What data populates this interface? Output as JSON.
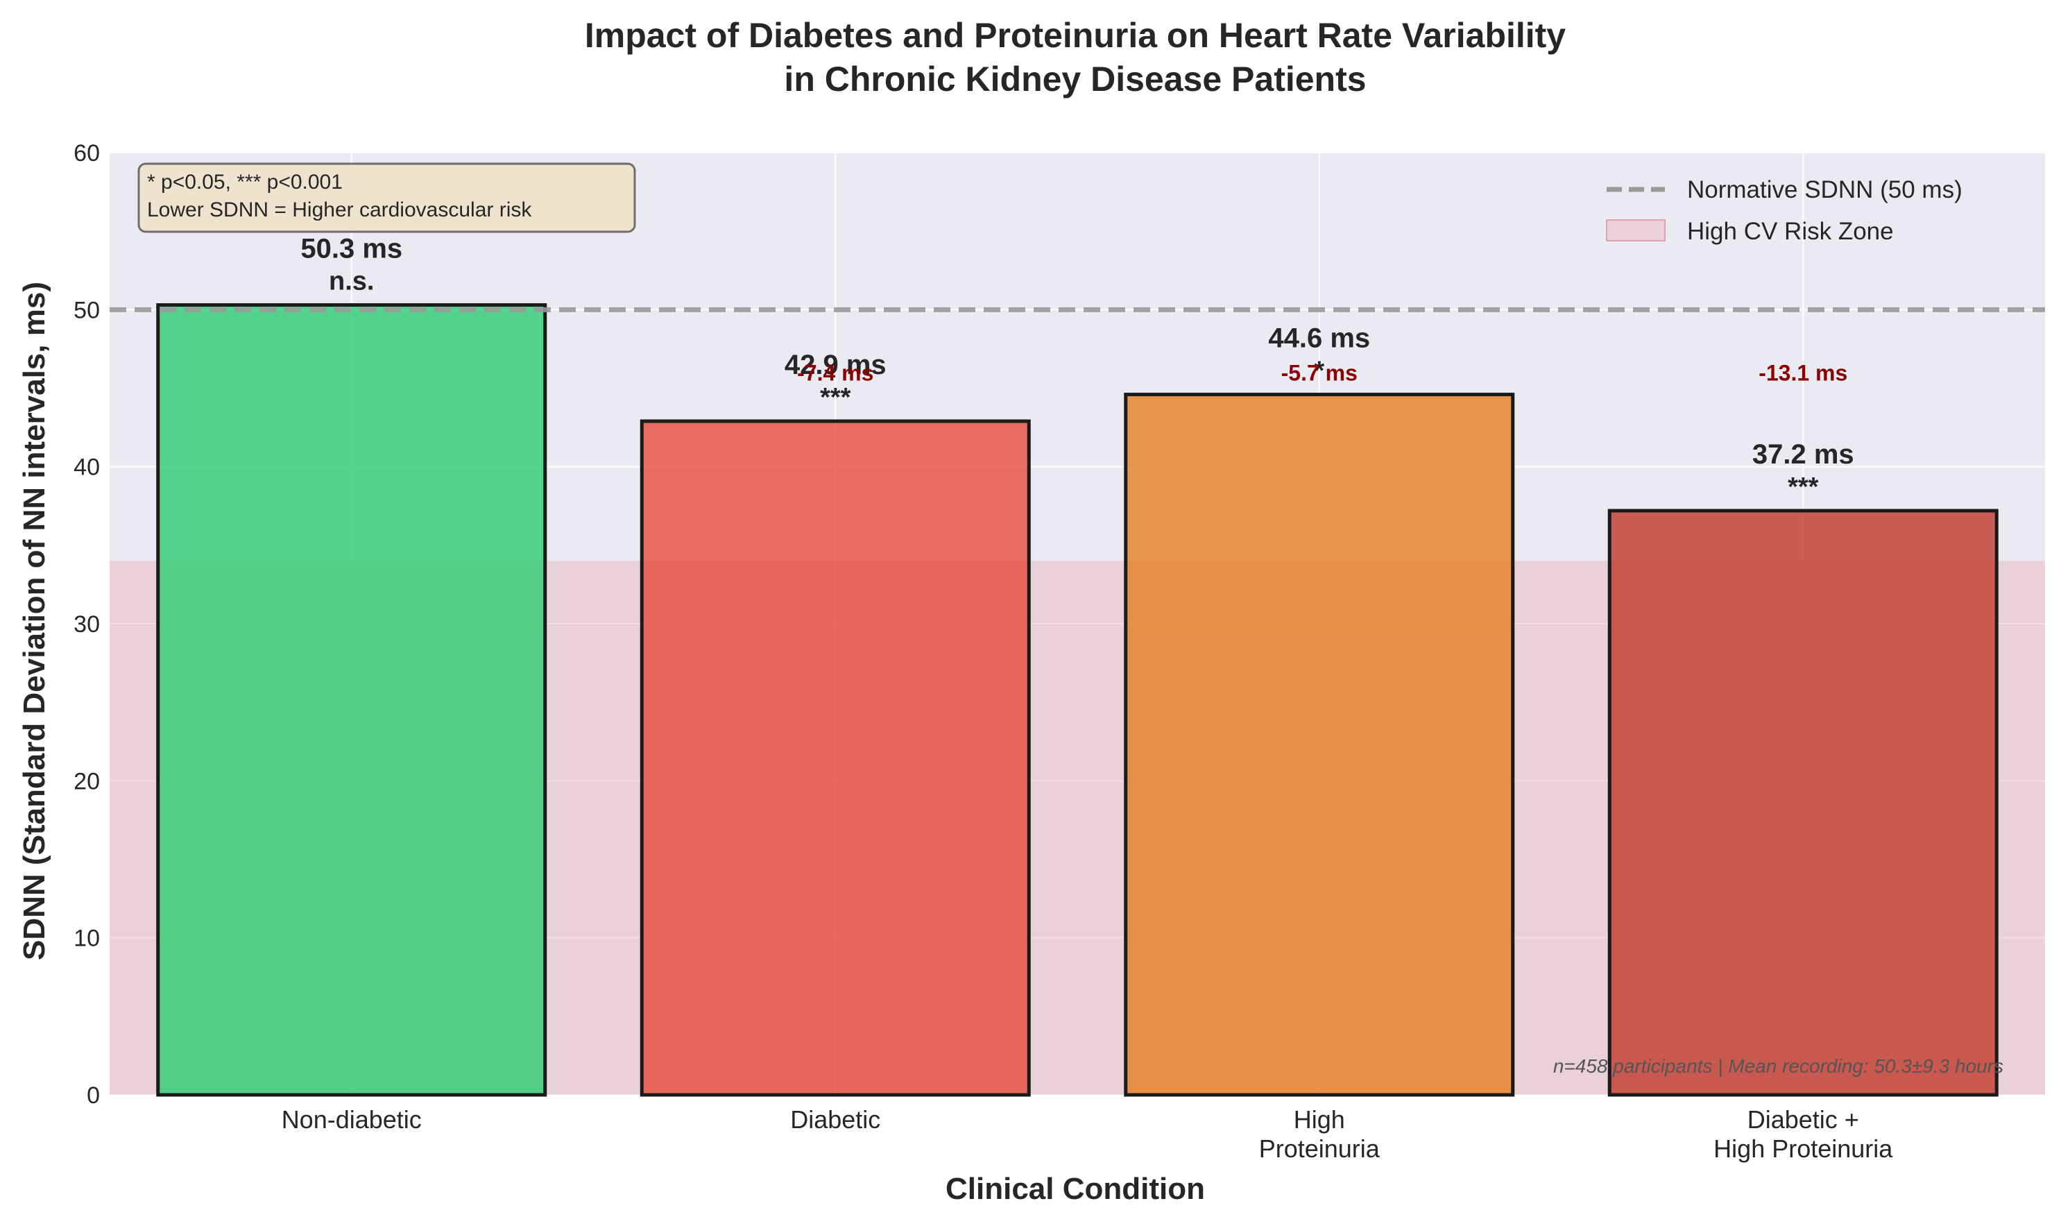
{
  "chart_data": {
    "type": "bar",
    "title_lines": [
      "Impact of Diabetes and Proteinuria on Heart Rate Variability",
      "in Chronic Kidney Disease Patients"
    ],
    "xlabel": "Clinical Condition",
    "ylabel": "SDNN (Standard Deviation of NN intervals, ms)",
    "ylim": [
      0,
      60
    ],
    "yticks": [
      0,
      10,
      20,
      30,
      40,
      50,
      60
    ],
    "grid": true,
    "categories": [
      {
        "lines": [
          "Non-diabetic"
        ]
      },
      {
        "lines": [
          "Diabetic"
        ]
      },
      {
        "lines": [
          "High",
          "Proteinuria"
        ]
      },
      {
        "lines": [
          "Diabetic +",
          "High Proteinuria"
        ]
      }
    ],
    "values": [
      50.3,
      42.9,
      44.6,
      37.2
    ],
    "value_labels": [
      "50.3 ms",
      "42.9 ms",
      "44.6 ms",
      "37.2 ms"
    ],
    "significance": [
      "n.s.",
      "***",
      "*",
      "***"
    ],
    "differences": [
      {
        "index": 1,
        "text": "-7.4 ms"
      },
      {
        "index": 2,
        "text": "-5.7 ms"
      },
      {
        "index": 3,
        "text": "-13.1 ms"
      }
    ],
    "difference_value": 45,
    "bar_colors": [
      "#2ecc71",
      "#e74c3c",
      "#e67e22",
      "#c0392b"
    ],
    "reference_line": {
      "value": 50,
      "label": "Normative SDNN (50 ms)",
      "color": "#999999"
    },
    "risk_zone": {
      "from": 0,
      "to": 34,
      "label": "High CV Risk Zone",
      "color": "#e8a0ac"
    },
    "annotation_box_lines": [
      "* p<0.05, *** p<0.001",
      "Lower SDNN = Higher cardiovascular risk"
    ],
    "footnote": "n=458 participants | Mean recording: 50.3±9.3 hours",
    "legend_position": "top-right",
    "colors": {
      "axes_bg": "#eaeaf2",
      "diff_text": "#8b0000",
      "text": "#262626",
      "grid": "#ffffff",
      "annotation_bg": "#efe3d0"
    }
  }
}
